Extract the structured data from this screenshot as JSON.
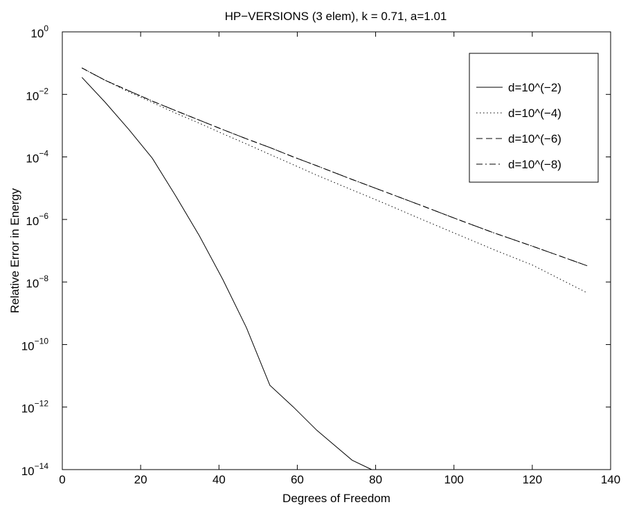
{
  "chart_data": {
    "type": "line",
    "title": "HP−VERSIONS (3 elem), k = 0.71, a=1.01",
    "xlabel": "Degrees of Freedom",
    "ylabel": "Relative Error in Energy",
    "xlim": [
      0,
      140
    ],
    "ylim": [
      1e-14,
      1
    ],
    "yscale": "log",
    "grid": false,
    "legend_position": "top-right",
    "x_ticks": [
      0,
      20,
      40,
      60,
      80,
      100,
      120,
      140
    ],
    "y_ticks": [
      {
        "base": "10",
        "exp": "0",
        "value": 1
      },
      {
        "base": "10",
        "exp": "−2",
        "value": 0.01
      },
      {
        "base": "10",
        "exp": "−4",
        "value": 0.0001
      },
      {
        "base": "10",
        "exp": "−6",
        "value": 1e-06
      },
      {
        "base": "10",
        "exp": "−8",
        "value": 1e-08
      },
      {
        "base": "10",
        "exp": "−10",
        "value": 1e-10
      },
      {
        "base": "10",
        "exp": "−12",
        "value": 1e-12
      },
      {
        "base": "10",
        "exp": "−14",
        "value": 1e-14
      }
    ],
    "series": [
      {
        "name": "d=10^(−2)",
        "style": "solid",
        "color": "#000000",
        "x": [
          5,
          11,
          17,
          23,
          29,
          35,
          41,
          47,
          53,
          59,
          65,
          74,
          79
        ],
        "y": [
          0.035,
          0.0055,
          0.00075,
          9e-05,
          5.5e-06,
          3e-07,
          1.2e-08,
          3.5e-10,
          5e-12,
          1e-12,
          1.8e-13,
          2e-14,
          1e-14
        ]
      },
      {
        "name": "d=10^(−4)",
        "style": "dotted",
        "color": "#000000",
        "x": [
          5,
          11,
          17,
          23,
          29,
          35,
          41,
          47,
          53,
          59,
          65,
          74,
          83,
          92,
          101,
          110,
          120,
          134
        ],
        "y": [
          0.07,
          0.028,
          0.012,
          0.0055,
          0.0025,
          0.0012,
          0.00055,
          0.00026,
          0.00012,
          5.6e-05,
          2.6e-05,
          8.8e-06,
          3e-06,
          9.8e-07,
          3.3e-07,
          1.1e-07,
          3.5e-08,
          4.5e-09
        ]
      },
      {
        "name": "d=10^(−6)",
        "style": "dashed",
        "color": "#000000",
        "x": [
          5,
          11,
          17,
          23,
          29,
          35,
          41,
          47,
          53,
          59,
          65,
          74,
          83,
          92,
          101,
          110,
          120,
          134
        ],
        "y": [
          0.07,
          0.028,
          0.013,
          0.0061,
          0.003,
          0.0015,
          0.00075,
          0.00038,
          0.0002,
          0.0001,
          5.2e-05,
          1.9e-05,
          7.2e-06,
          2.7e-06,
          1e-06,
          3.8e-07,
          1.4e-07,
          3.3e-08
        ]
      },
      {
        "name": "d=10^(−8)",
        "style": "dashdot",
        "color": "#000000",
        "x": [
          5,
          11,
          17,
          23,
          29,
          35,
          41,
          47,
          53,
          59,
          65,
          74,
          83,
          92,
          101,
          110,
          120,
          134
        ],
        "y": [
          0.07,
          0.028,
          0.013,
          0.0061,
          0.003,
          0.0015,
          0.00075,
          0.00038,
          0.0002,
          0.0001,
          5.2e-05,
          1.9e-05,
          7.2e-06,
          2.7e-06,
          1e-06,
          3.8e-07,
          1.4e-07,
          3.3e-08
        ]
      }
    ]
  }
}
